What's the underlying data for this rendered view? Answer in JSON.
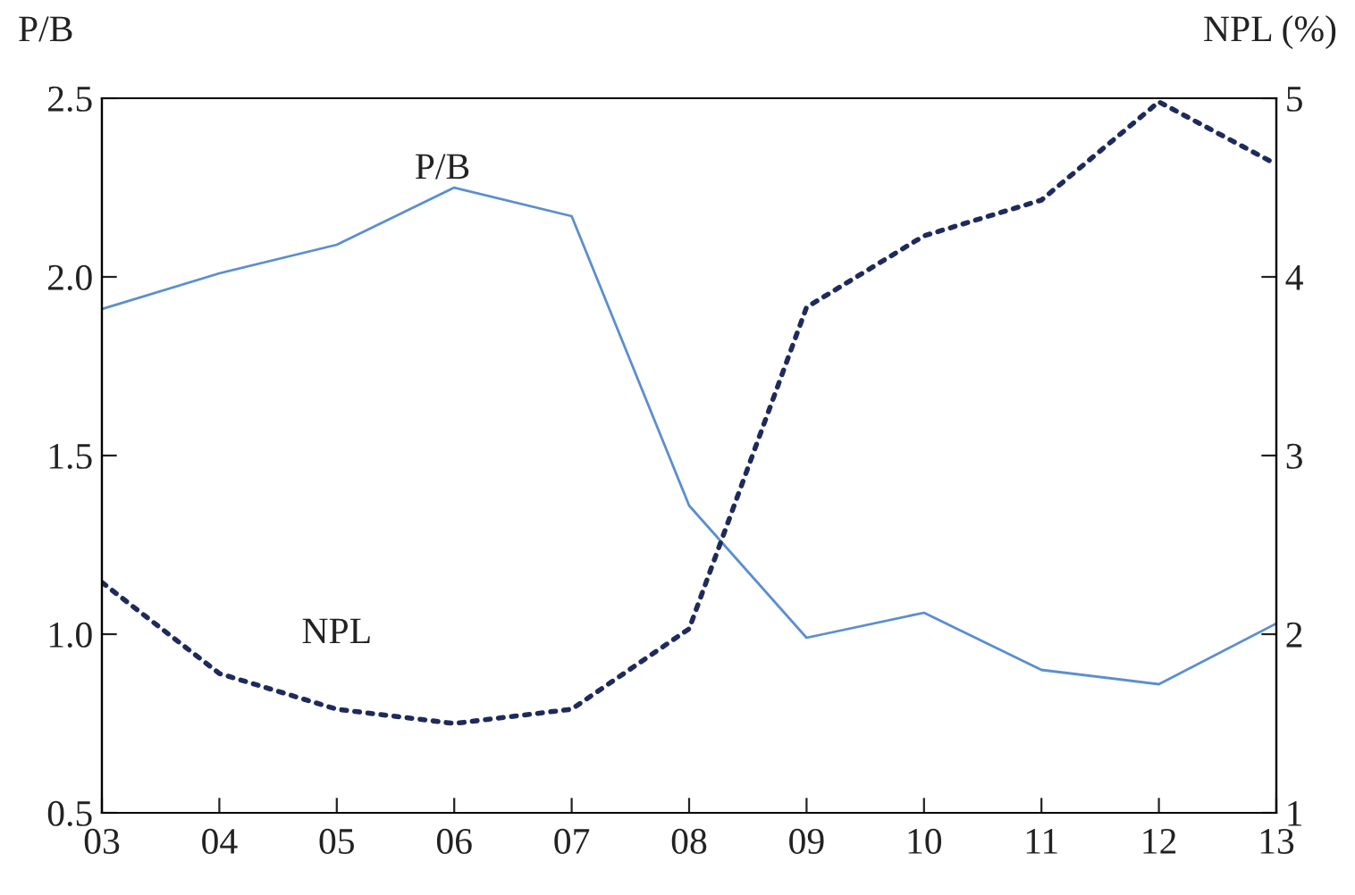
{
  "chart_data": {
    "type": "line",
    "categories": [
      "03",
      "04",
      "05",
      "06",
      "07",
      "08",
      "09",
      "10",
      "11",
      "12",
      "13"
    ],
    "ylabel": "P/B",
    "y2label": "NPL (%)",
    "ylim": [
      0.5,
      2.5
    ],
    "yticks": [
      {
        "value": 0.5,
        "label": "0.5"
      },
      {
        "value": 1.0,
        "label": "1.0"
      },
      {
        "value": 1.5,
        "label": "1.5"
      },
      {
        "value": 2.0,
        "label": "2.0"
      },
      {
        "value": 2.5,
        "label": "2.5"
      }
    ],
    "y2lim": [
      1,
      5
    ],
    "y2ticks": [
      1,
      2,
      3,
      4,
      5
    ],
    "grid": false,
    "legend": false,
    "series": [
      {
        "name": "P/B",
        "color": "#5b8ed0",
        "line_style": "solid",
        "values": [
          1.91,
          2.01,
          2.09,
          2.25,
          2.17,
          1.36,
          0.99,
          1.06,
          0.9,
          0.86,
          1.03
        ]
      },
      {
        "name": "NPL",
        "color": "#1f2a5c",
        "line_style": "dotted",
        "axis": "y2",
        "values": [
          2.29,
          1.78,
          1.58,
          1.5,
          1.58,
          2.03,
          3.83,
          4.23,
          4.43,
          4.98,
          4.63
        ]
      }
    ]
  }
}
